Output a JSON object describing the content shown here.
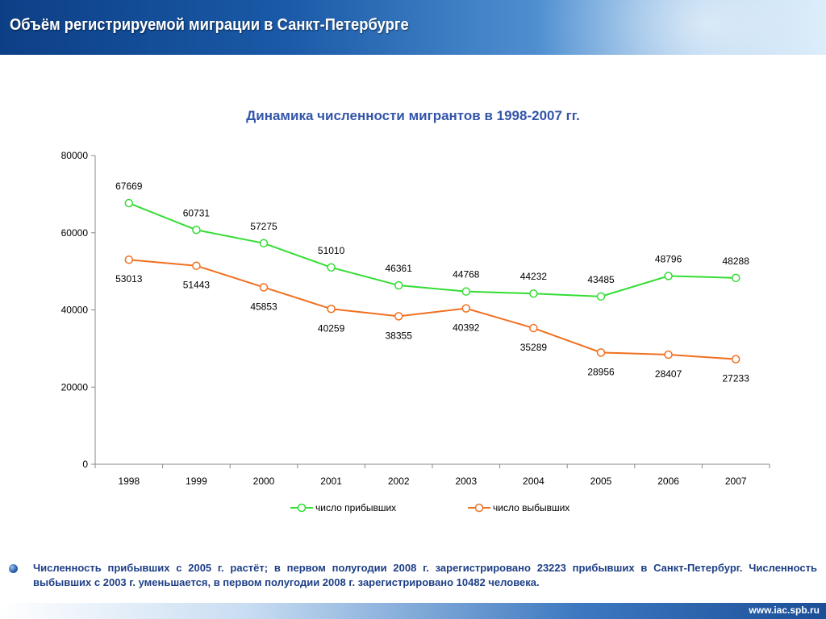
{
  "header": {
    "title": "Объём регистрируемой миграции в Санкт-Петербурге"
  },
  "chart_data": {
    "type": "line",
    "title": "Динамика численности мигрантов в 1998-2007 гг.",
    "xlabel": "",
    "ylabel": "",
    "categories": [
      "1998",
      "1999",
      "2000",
      "2001",
      "2002",
      "2003",
      "2004",
      "2005",
      "2006",
      "2007"
    ],
    "ylim": [
      0,
      80000
    ],
    "yticks": [
      0,
      20000,
      40000,
      60000,
      80000
    ],
    "grid": false,
    "legend_position": "bottom",
    "series": [
      {
        "name": "число прибывших",
        "color": "#33dd33",
        "values": [
          67669,
          60731,
          57275,
          51010,
          46361,
          44768,
          44232,
          43485,
          48796,
          48288
        ],
        "label_position": "above"
      },
      {
        "name": "число выбывших",
        "color": "#f07020",
        "values": [
          53013,
          51443,
          45853,
          40259,
          38355,
          40392,
          35289,
          28956,
          28407,
          27233
        ],
        "label_position": "below"
      }
    ]
  },
  "note": {
    "text": "Численность прибывших с 2005 г. растёт; в первом полугодии 2008 г. зарегистрировано 23223 прибывших в Санкт-Петербург. Численность выбывших с 2003 г. уменьшается, в первом полугодии 2008 г. зарегистрировано 10482 человека."
  },
  "footer": {
    "url": "www.iac.spb.ru"
  },
  "theme": {
    "header_color": "#1a5aa8",
    "text_accent": "#3355aa",
    "note_color": "#1e3f86"
  }
}
